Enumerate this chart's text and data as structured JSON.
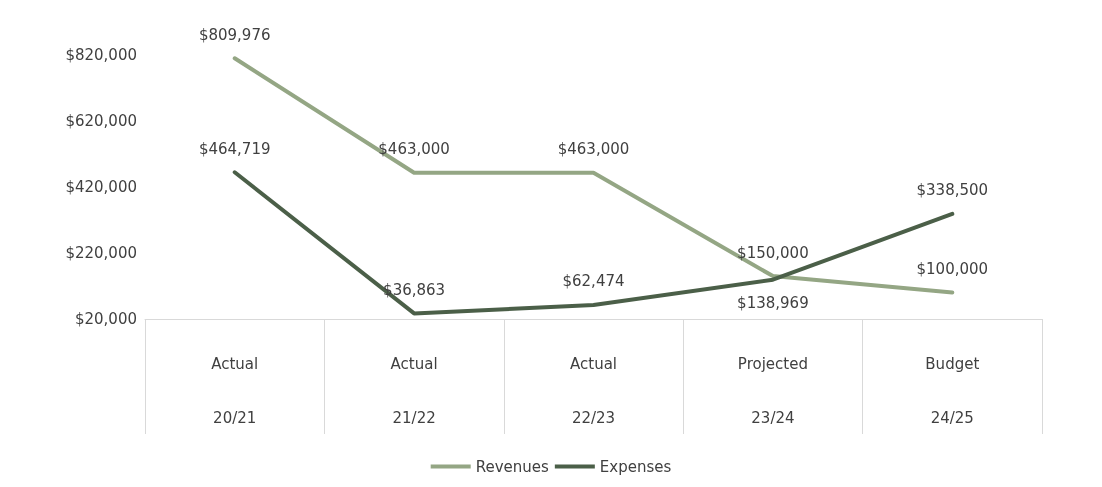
{
  "chart_data": {
    "type": "line",
    "categories": [
      "Actual\n20/21",
      "Actual\n21/22",
      "Actual\n22/23",
      "Projected\n23/24",
      "Budget\n24/25"
    ],
    "series": [
      {
        "name": "Revenues",
        "color": "#94a684",
        "values": [
          809976,
          463000,
          463000,
          150000,
          100000
        ],
        "value_labels": [
          "$809,976",
          "$463,000",
          "$463,000",
          "$150,000",
          "$100,000"
        ]
      },
      {
        "name": "Expenses",
        "color": "#4b5f48",
        "values": [
          464719,
          36863,
          62474,
          138969,
          338500
        ],
        "value_labels": [
          "$464,719",
          "$36,863",
          "$62,474",
          "$138,969",
          "$338,500"
        ]
      }
    ],
    "ylim": [
      20000,
      820000
    ],
    "yticks": [
      {
        "value": 20000,
        "label": "$20,000"
      },
      {
        "value": 220000,
        "label": "$220,000"
      },
      {
        "value": 420000,
        "label": "$420,000"
      },
      {
        "value": 620000,
        "label": "$620,000"
      },
      {
        "value": 820000,
        "label": "$820,000"
      }
    ],
    "grid": false,
    "legend": "bottom",
    "marker": "none",
    "line_style": "solid"
  }
}
